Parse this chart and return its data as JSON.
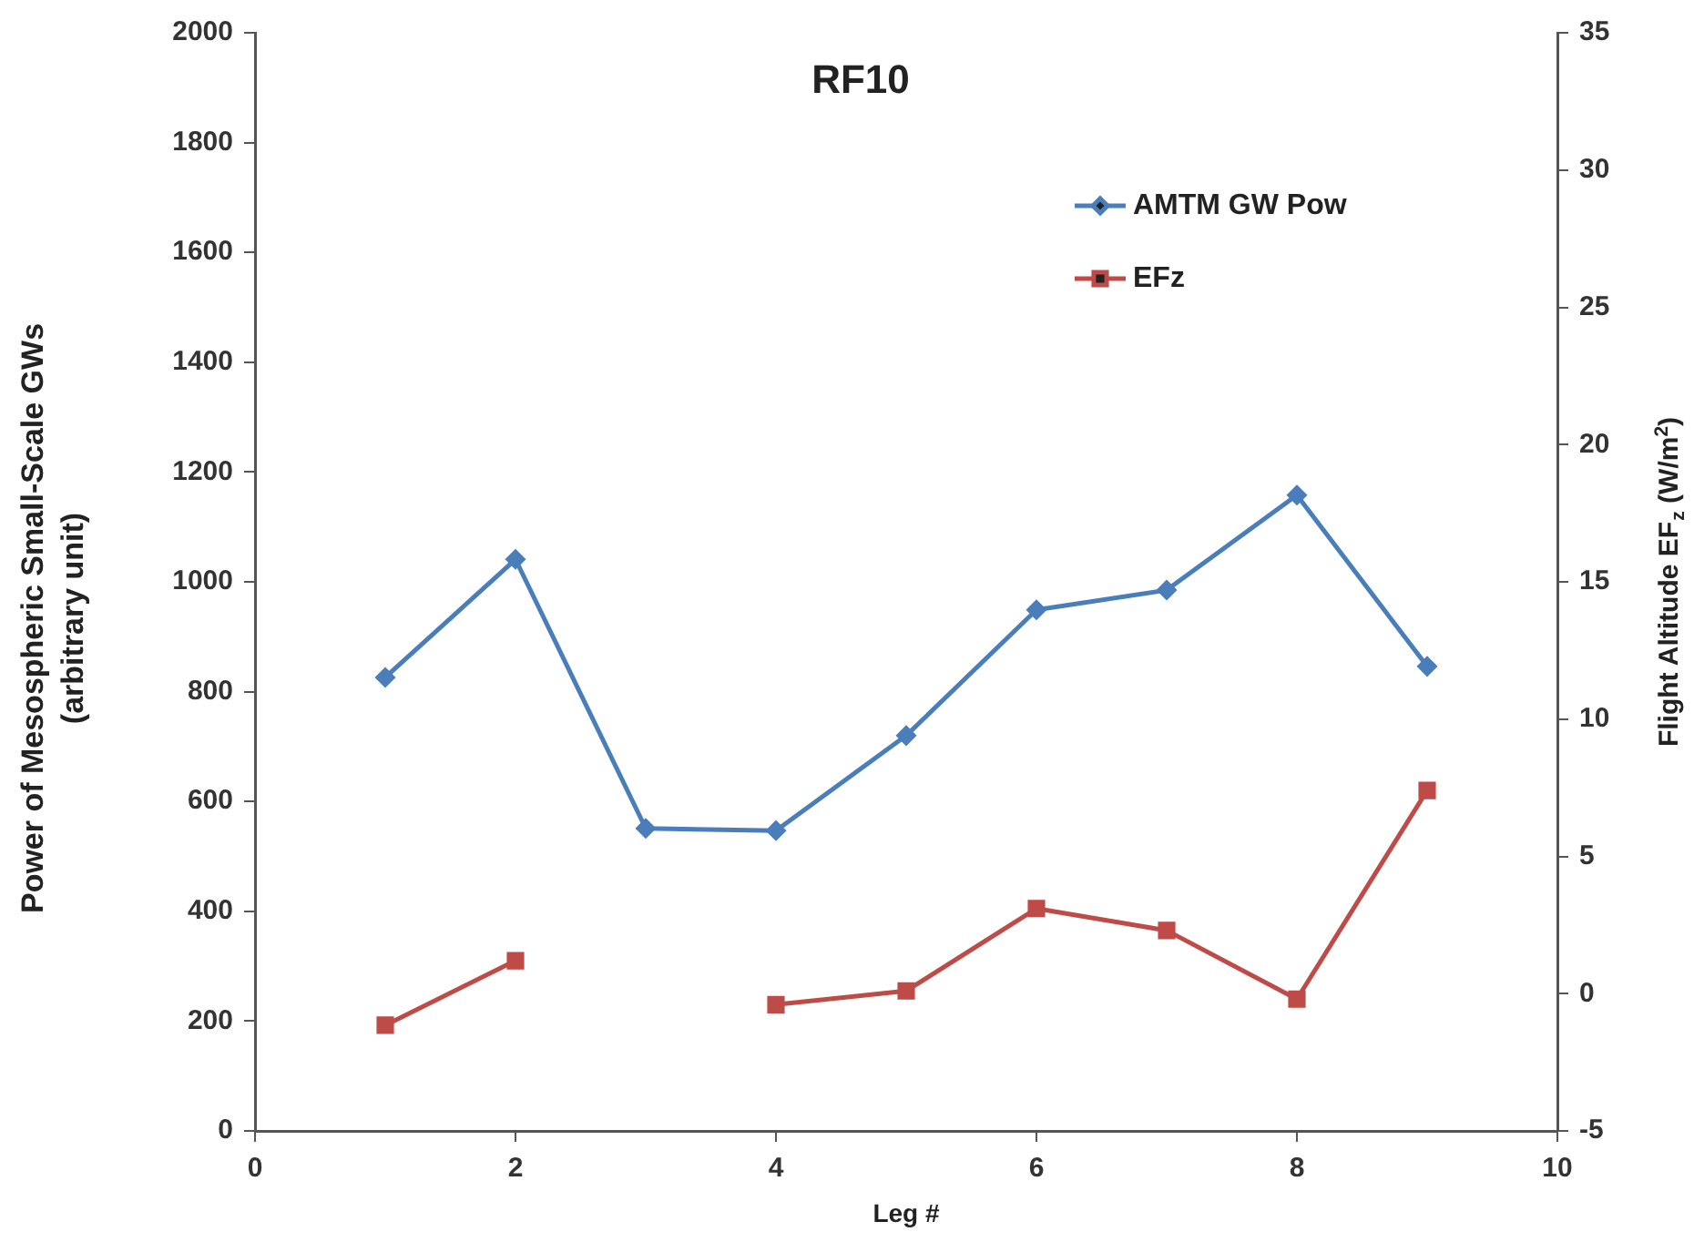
{
  "chart_data": {
    "type": "line",
    "title": "RF10",
    "xlabel": "Leg #",
    "ylabel": "Power of Mesospheric Small-Scale GWs\n(arbitrary unit)",
    "y2label": "Flight Altitude EF$_{z}$ (W/m$^{2}$)",
    "x": [
      1,
      2,
      3,
      4,
      5,
      6,
      7,
      8,
      9
    ],
    "series": [
      {
        "name": "AMTM GW Pow",
        "color": "#4a7ebb",
        "marker": "diamond",
        "values": [
          826,
          1041,
          551,
          547,
          720,
          949,
          985,
          1158,
          846
        ]
      },
      {
        "name": "EFz",
        "color": "#be4b48",
        "marker": "square",
        "axis": "y2",
        "values": [
          -1.15,
          1.2,
          null,
          -0.4,
          0.1,
          3.1,
          2.3,
          -0.2,
          7.4
        ]
      }
    ],
    "xlim": [
      0,
      10
    ],
    "xticks": [
      0,
      2,
      4,
      6,
      8,
      10
    ],
    "ylim": [
      0,
      2000
    ],
    "yticks": [
      0,
      200,
      400,
      600,
      800,
      1000,
      1200,
      1400,
      1600,
      1800,
      2000
    ],
    "y2lim": [
      -5,
      35
    ],
    "y2ticks": [
      -5,
      0,
      5,
      10,
      15,
      20,
      25,
      30,
      35
    ],
    "grid": false,
    "legend": "top right",
    "line_style": "solid"
  }
}
